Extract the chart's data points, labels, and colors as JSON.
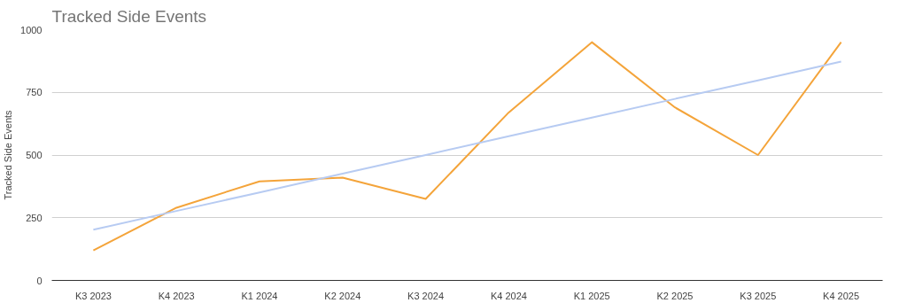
{
  "chart_data": {
    "type": "line",
    "title": "Tracked Side Events",
    "ylabel": "Tracked Side Events",
    "categories": [
      "K3 2023",
      "K4 2023",
      "K1 2024",
      "K2 2024",
      "K3 2024",
      "K4 2024",
      "K1 2025",
      "K2 2025",
      "K3 2025",
      "K4 2025"
    ],
    "series": [
      {
        "color": "#f4a43a",
        "values": [
          120,
          290,
          395,
          410,
          325,
          670,
          950,
          690,
          500,
          950
        ]
      },
      {
        "type": "line",
        "color": "#b7cbf2",
        "values": [
          202,
          277,
          351,
          426,
          500,
          575,
          649,
          724,
          798,
          873
        ]
      }
    ],
    "ylim": [
      0,
      1000
    ],
    "yticks": [
      0,
      250,
      500,
      750,
      1000
    ],
    "grid": "y"
  }
}
